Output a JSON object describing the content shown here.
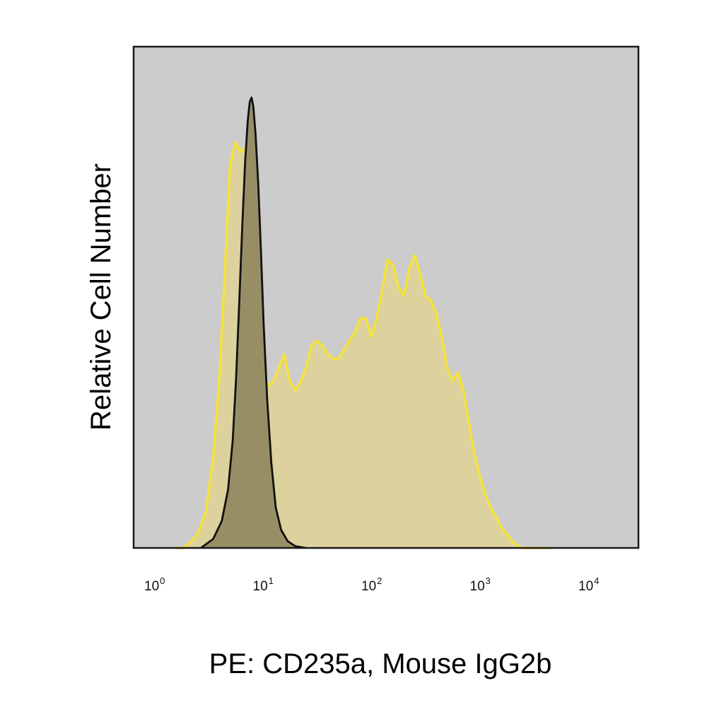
{
  "chart_data": {
    "type": "area",
    "xlabel": "PE: CD235a, Mouse IgG2b",
    "ylabel": "Relative Cell Number",
    "x_scale": "log",
    "xlim": [
      1,
      10000
    ],
    "ylim": [
      0,
      1
    ],
    "x_ticks": [
      {
        "base": "10",
        "exp": "0",
        "value": 1
      },
      {
        "base": "10",
        "exp": "1",
        "value": 10
      },
      {
        "base": "10",
        "exp": "2",
        "value": 100
      },
      {
        "base": "10",
        "exp": "3",
        "value": 1000
      },
      {
        "base": "10",
        "exp": "4",
        "value": 10000
      }
    ],
    "grid": false,
    "plot_background": "#cccccc",
    "series": [
      {
        "fill": "#ddd29a",
        "stroke": "#f5e23a",
        "x": [
          1.6,
          1.8,
          2.0,
          2.5,
          3.0,
          3.5,
          4.0,
          4.5,
          5.0,
          5.6,
          6.3,
          7.0,
          7.9,
          8.5,
          9.0,
          10.0,
          11.2,
          12.6,
          14.1,
          15.8,
          17.8,
          20.0,
          22.4,
          25.1,
          28.2,
          31.6,
          35.5,
          39.8,
          44.7,
          50.1,
          56.2,
          63.1,
          70.8,
          79.4,
          89.1,
          100.0,
          112.2,
          125.9,
          141.3,
          158.5,
          177.8,
          199.5,
          223.9,
          251.2,
          281.8,
          316.2,
          354.8,
          398.1,
          446.7,
          501.2,
          562.3,
          631.0,
          707.9,
          794.3,
          891.3,
          1000.0,
          1122.0,
          1258.9,
          1412.5,
          1584.9,
          1778.3,
          1995.3,
          2238.7,
          2511.9,
          2818.4,
          3162.3,
          3548.1,
          3981.1,
          4466.8
        ],
        "y": [
          0.0,
          0.0,
          0.005,
          0.03,
          0.08,
          0.2,
          0.38,
          0.62,
          0.85,
          0.9,
          0.88,
          0.89,
          0.82,
          0.6,
          0.45,
          0.4,
          0.36,
          0.37,
          0.4,
          0.43,
          0.37,
          0.35,
          0.37,
          0.4,
          0.45,
          0.46,
          0.45,
          0.43,
          0.42,
          0.42,
          0.44,
          0.46,
          0.48,
          0.51,
          0.51,
          0.47,
          0.51,
          0.57,
          0.64,
          0.63,
          0.58,
          0.56,
          0.62,
          0.65,
          0.61,
          0.56,
          0.55,
          0.52,
          0.47,
          0.4,
          0.37,
          0.39,
          0.35,
          0.28,
          0.21,
          0.16,
          0.12,
          0.09,
          0.07,
          0.045,
          0.03,
          0.015,
          0.005,
          0.0,
          0.0,
          0.0,
          0.0,
          0.0,
          0.0
        ]
      },
      {
        "fill": "#938a62",
        "stroke": "#111111",
        "x": [
          2.7,
          3.5,
          4.2,
          4.8,
          5.3,
          5.7,
          6.1,
          6.5,
          6.9,
          7.3,
          7.6,
          7.9,
          8.2,
          8.6,
          9.1,
          9.6,
          10.2,
          11.0,
          12.0,
          13.2,
          14.8,
          17.0,
          20.0,
          25.0
        ],
        "y": [
          0.0,
          0.02,
          0.06,
          0.13,
          0.24,
          0.38,
          0.55,
          0.72,
          0.86,
          0.95,
          0.99,
          1.0,
          0.98,
          0.92,
          0.81,
          0.67,
          0.5,
          0.33,
          0.19,
          0.09,
          0.04,
          0.015,
          0.004,
          0.0
        ]
      }
    ]
  }
}
